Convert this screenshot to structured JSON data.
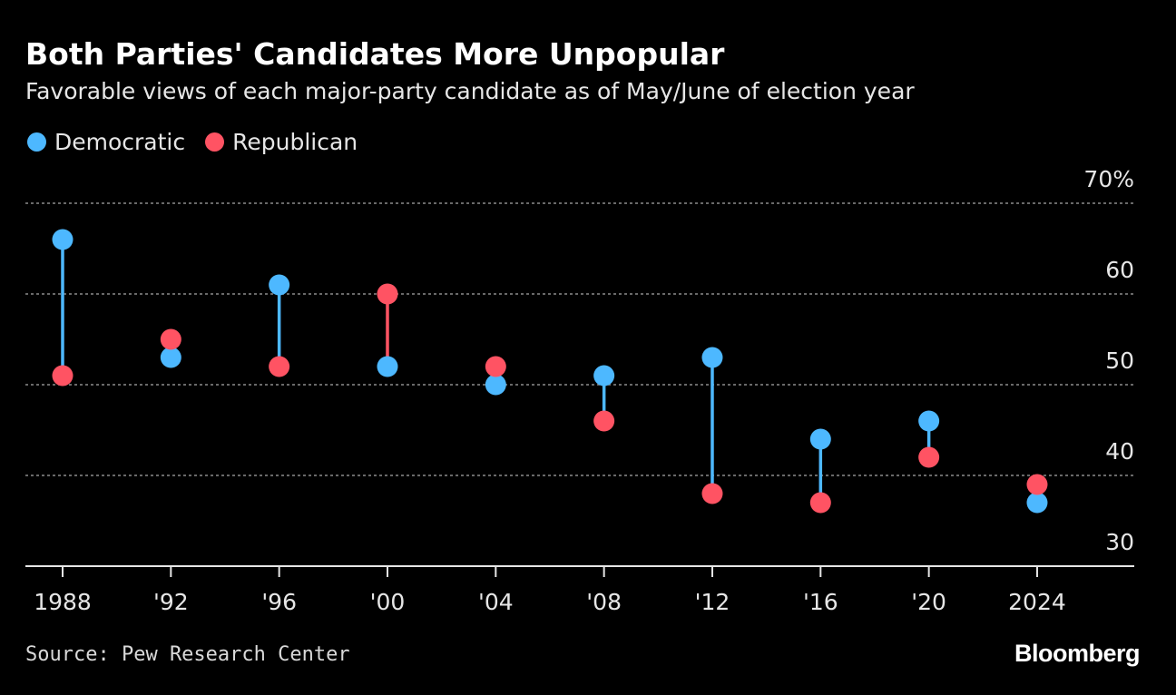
{
  "header": {
    "title": "Both Parties' Candidates More Unpopular",
    "subtitle": "Favorable views of each major-party candidate as of May/June of election year"
  },
  "legend": [
    {
      "label": "Democratic",
      "color": "#4DB8FF"
    },
    {
      "label": "Republican",
      "color": "#FF5363"
    }
  ],
  "footer": {
    "source": "Source: Pew Research Center",
    "brand": "Bloomberg"
  },
  "chart_data": {
    "type": "dot",
    "title": "Both Parties' Candidates More Unpopular",
    "subtitle": "Favorable views of each major-party candidate as of May/June of election year",
    "categories": [
      "1988",
      "'92",
      "'96",
      "'00",
      "'04",
      "'08",
      "'12",
      "'16",
      "'20",
      "2024"
    ],
    "series": [
      {
        "name": "Democratic",
        "color": "#4DB8FF",
        "values": [
          66,
          53,
          61,
          52,
          50,
          51,
          53,
          44,
          46,
          37
        ]
      },
      {
        "name": "Republican",
        "color": "#FF5363",
        "values": [
          51,
          55,
          52,
          60,
          52,
          46,
          38,
          37,
          42,
          39
        ]
      }
    ],
    "y_ticks": [
      "70%",
      "60",
      "50",
      "40",
      "30"
    ],
    "y_tick_values": [
      70,
      60,
      50,
      40,
      30
    ],
    "ylim": [
      30,
      70
    ],
    "grid": true,
    "legend_position": "top-left",
    "connector_color_rule": "color of the higher value"
  }
}
